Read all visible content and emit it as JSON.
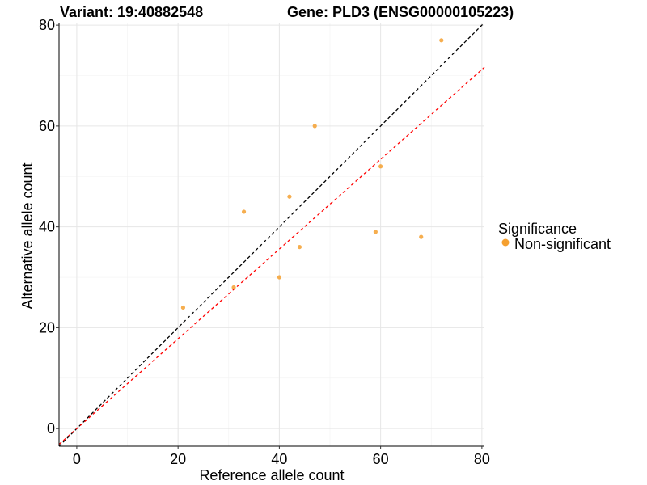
{
  "chart_data": {
    "type": "scatter",
    "title_left": "Variant: 19:40882548",
    "title_right": "Gene: PLD3 (ENSG00000105223)",
    "xlabel": "Reference allele count",
    "ylabel": "Alternative allele count",
    "xlim": [
      -3.5,
      80.5
    ],
    "ylim": [
      -3.5,
      80.5
    ],
    "xticks": [
      0,
      20,
      40,
      60,
      80
    ],
    "yticks": [
      0,
      20,
      40,
      60,
      80
    ],
    "grid": true,
    "legend": {
      "title": "Significance",
      "position": "right",
      "entries": [
        {
          "label": "Non-significant",
          "color": "#F5A030"
        }
      ]
    },
    "series": [
      {
        "name": "Non-significant",
        "color": "#F5A030",
        "points": [
          {
            "x": 21,
            "y": 24
          },
          {
            "x": 31,
            "y": 28
          },
          {
            "x": 33,
            "y": 43
          },
          {
            "x": 40,
            "y": 30
          },
          {
            "x": 42,
            "y": 46
          },
          {
            "x": 44,
            "y": 36
          },
          {
            "x": 47,
            "y": 60
          },
          {
            "x": 59,
            "y": 39
          },
          {
            "x": 60,
            "y": 52
          },
          {
            "x": 68,
            "y": 38
          },
          {
            "x": 72,
            "y": 77
          }
        ]
      }
    ],
    "reference_lines": [
      {
        "kind": "identity",
        "slope": 1,
        "intercept": 0,
        "color": "#000000",
        "style": "dashed"
      },
      {
        "kind": "ratio",
        "slope": 0.89,
        "intercept": 0,
        "color": "#FF0000",
        "style": "dashed"
      }
    ]
  }
}
